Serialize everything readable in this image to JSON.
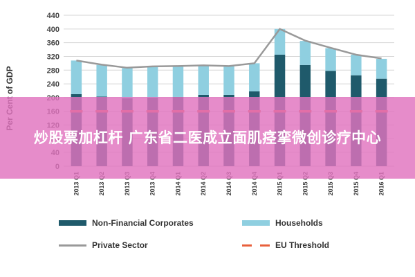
{
  "chart_data": {
    "type": "bar",
    "ylabel": "Per Cent of GDP",
    "ylim": [
      0,
      440
    ],
    "yticks": [
      0,
      40,
      80,
      120,
      160,
      200,
      240,
      280,
      320,
      360,
      400,
      440
    ],
    "categories": [
      "2013 Q1",
      "2013 Q2",
      "2013 Q3",
      "2013 Q4",
      "2014 Q1",
      "2014 Q2",
      "2014 Q3",
      "2014 Q4",
      "2015 Q1",
      "2015 Q2",
      "2015 Q3",
      "2015 Q4",
      "2016 Q1"
    ],
    "series": [
      {
        "name": "Non-Financial Corporates",
        "kind": "bar",
        "color": "#1f5a6b",
        "values": [
          210,
          203,
          198,
          200,
          202,
          208,
          208,
          218,
          325,
          295,
          278,
          265,
          255
        ]
      },
      {
        "name": "Households",
        "kind": "bar",
        "color": "#8fcfe0",
        "values": [
          98,
          92,
          88,
          90,
          90,
          86,
          84,
          82,
          75,
          70,
          66,
          60,
          58
        ]
      },
      {
        "name": "Private Sector",
        "kind": "line",
        "color": "#999999",
        "values": [
          308,
          296,
          287,
          291,
          292,
          294,
          292,
          300,
          400,
          366,
          345,
          325,
          314
        ]
      },
      {
        "name": "EU Threshold",
        "kind": "dashed",
        "color": "#e8603c",
        "values": [
          160,
          160,
          160,
          160,
          160,
          160,
          160,
          160,
          160,
          160,
          160,
          160,
          160
        ]
      }
    ],
    "legend_position": "bottom",
    "grid": true
  },
  "overlay": {
    "text": "炒股票加杠杆 广东省二医成立面肌痉挛微创诊疗中心"
  }
}
